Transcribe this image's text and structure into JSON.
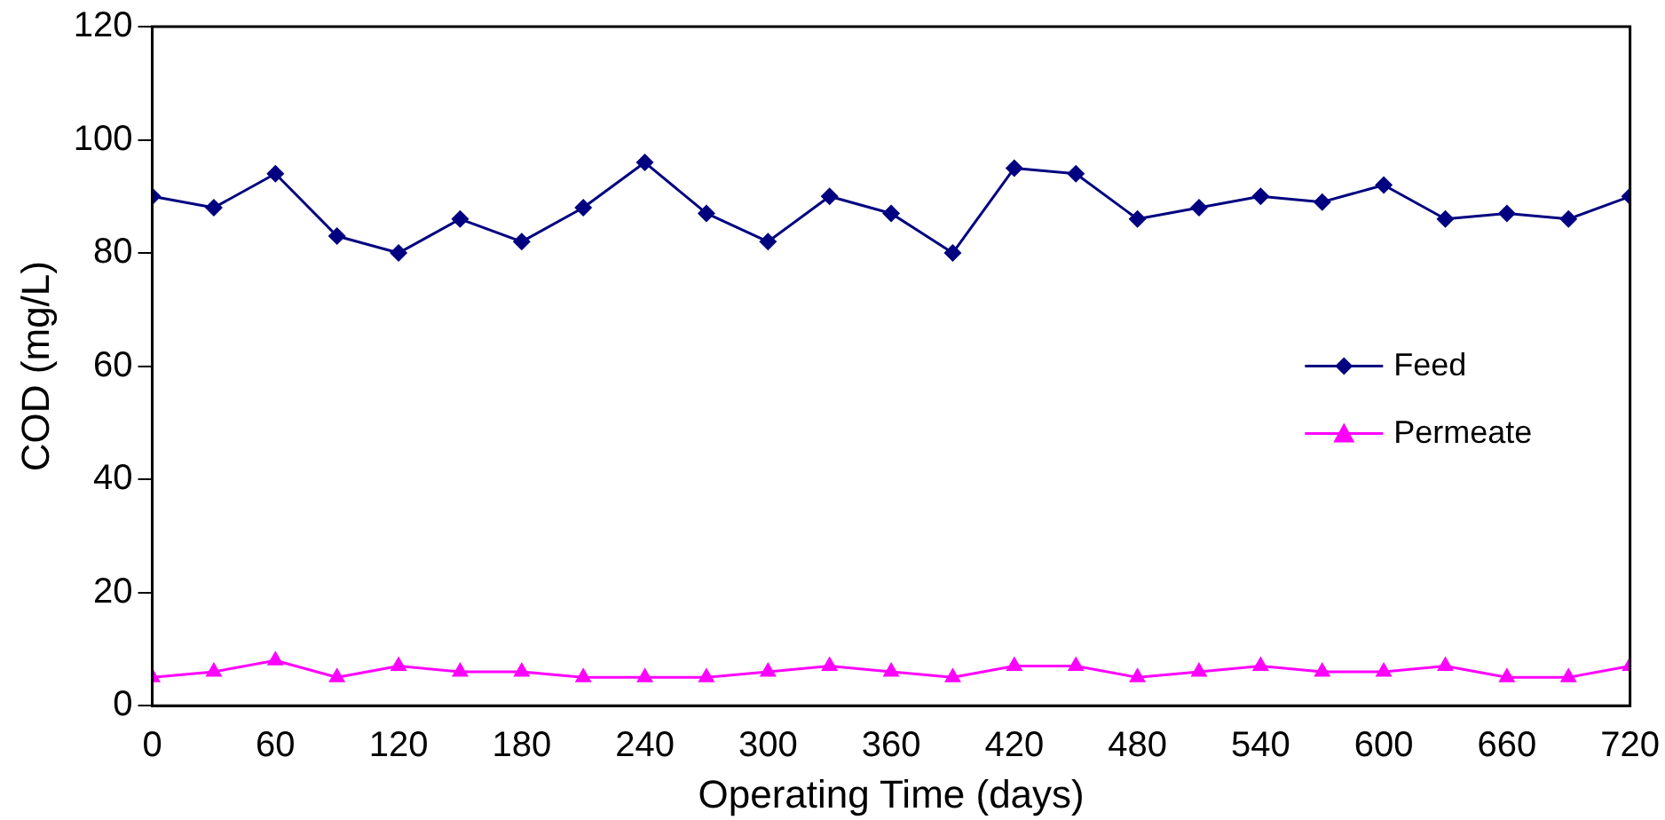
{
  "chart_data": {
    "type": "line",
    "xlabel": "Operating Time (days)",
    "ylabel": "COD (mg/L)",
    "x": [
      0,
      30,
      60,
      90,
      120,
      150,
      180,
      210,
      240,
      270,
      300,
      330,
      360,
      390,
      420,
      450,
      480,
      510,
      540,
      570,
      600,
      630,
      660,
      690,
      720
    ],
    "series": [
      {
        "name": "Feed",
        "color": "#000080",
        "marker": "diamond",
        "values": [
          90,
          88,
          94,
          83,
          80,
          86,
          82,
          88,
          96,
          87,
          82,
          90,
          87,
          80,
          95,
          94,
          86,
          88,
          90,
          89,
          92,
          86,
          87,
          86,
          90
        ]
      },
      {
        "name": "Permeate",
        "color": "#ff00ff",
        "marker": "triangle",
        "values": [
          5,
          6,
          8,
          5,
          7,
          6,
          6,
          5,
          5,
          5,
          6,
          7,
          6,
          5,
          7,
          7,
          5,
          6,
          7,
          6,
          6,
          7,
          5,
          5,
          7
        ]
      }
    ],
    "xlim": [
      0,
      720
    ],
    "xticks": [
      0,
      60,
      120,
      180,
      240,
      300,
      360,
      420,
      480,
      540,
      600,
      660,
      720
    ],
    "ylim": [
      0,
      120
    ],
    "yticks": [
      0,
      20,
      40,
      60,
      80,
      100,
      120
    ],
    "grid": false,
    "legend": "right",
    "line_style": "solid"
  }
}
